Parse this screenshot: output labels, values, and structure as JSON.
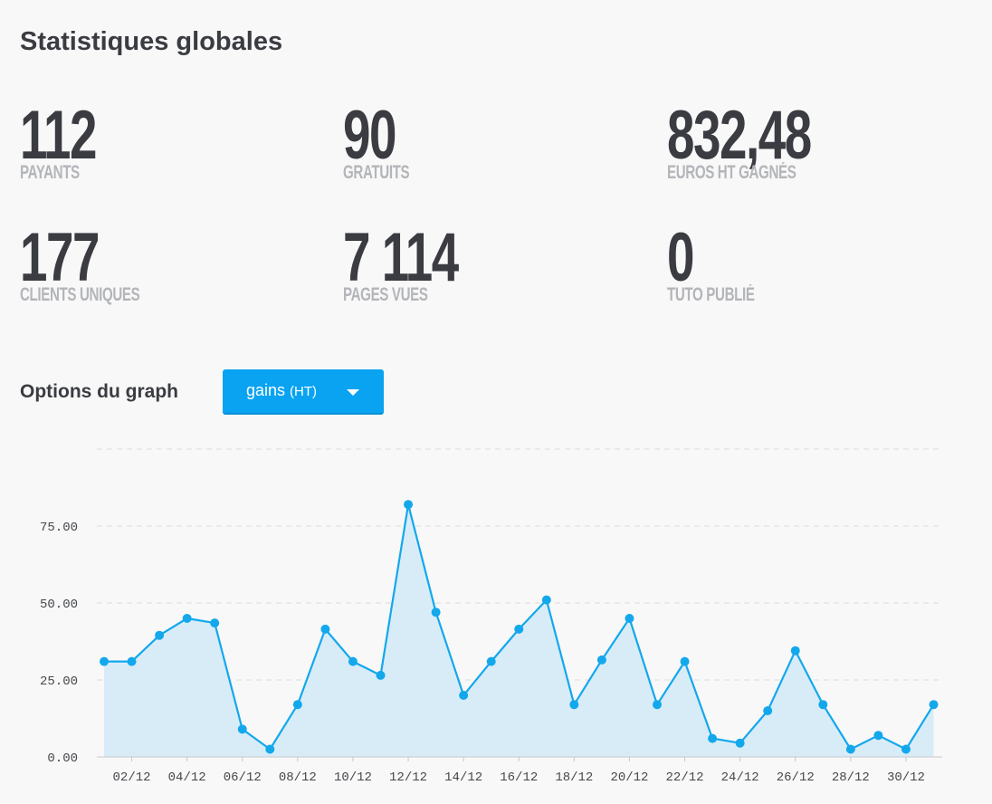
{
  "header": {
    "title": "Statistiques globales"
  },
  "stats": [
    {
      "value": "112",
      "label": "PAYANTS"
    },
    {
      "value": "90",
      "label": "GRATUITS"
    },
    {
      "value": "832,48",
      "label": "EUROS HT GAGNÉS"
    },
    {
      "value": "177",
      "label": "CLIENTS UNIQUES"
    },
    {
      "value": "7 114",
      "label": "PAGES VUES"
    },
    {
      "value": "0",
      "label": "TUTO PUBLIÉ"
    }
  ],
  "options": {
    "label": "Options du graph",
    "dropdown_value": "gains",
    "dropdown_sub": "(HT)"
  },
  "colors": {
    "accent": "#0aa3f2",
    "line": "#13a8ec",
    "area": "#d8ecf8",
    "grid": "#dcdcdc",
    "text_dark": "#3a3c42",
    "text_muted": "#b3b5b9"
  },
  "chart_data": {
    "type": "area",
    "x": [
      "01/12",
      "02/12",
      "03/12",
      "04/12",
      "05/12",
      "06/12",
      "07/12",
      "08/12",
      "09/12",
      "10/12",
      "11/12",
      "12/12",
      "13/12",
      "14/12",
      "15/12",
      "16/12",
      "17/12",
      "18/12",
      "19/12",
      "20/12",
      "21/12",
      "22/12",
      "23/12",
      "24/12",
      "25/12",
      "26/12",
      "27/12",
      "28/12",
      "29/12",
      "30/12",
      "31/12"
    ],
    "values": [
      31,
      31,
      39.5,
      45,
      43.5,
      9,
      2.5,
      17,
      41.5,
      31,
      26.5,
      82,
      47,
      20,
      31,
      41.5,
      51,
      17,
      31.5,
      45,
      17,
      31,
      6,
      4.5,
      15,
      34.5,
      17,
      2.5,
      7,
      2.5,
      17
    ],
    "x_tick_labels": [
      "02/12",
      "04/12",
      "06/12",
      "08/12",
      "10/12",
      "12/12",
      "14/12",
      "16/12",
      "18/12",
      "20/12",
      "22/12",
      "24/12",
      "26/12",
      "28/12",
      "30/12"
    ],
    "y_ticks": [
      0,
      25,
      50,
      75
    ],
    "y_tick_labels": [
      "0.00",
      "25.00",
      "50.00",
      "75.00"
    ],
    "ylim": [
      0,
      100
    ],
    "grid": true,
    "title": "",
    "xlabel": "",
    "ylabel": ""
  }
}
